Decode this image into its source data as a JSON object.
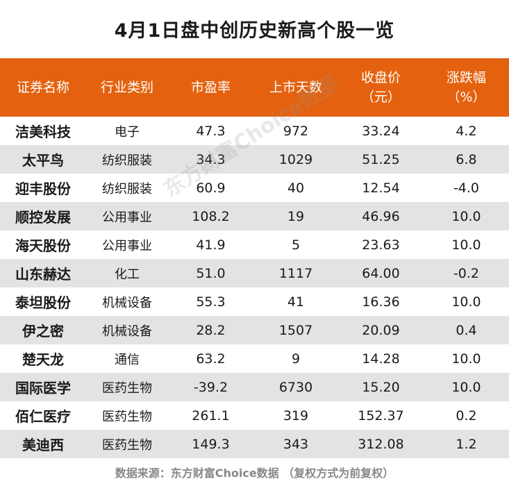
{
  "title": "4月1日盘中创历史新高个股一览",
  "headers": [
    {
      "line1": "证券名称",
      "line2": ""
    },
    {
      "line1": "行业类别",
      "line2": ""
    },
    {
      "line1": "市盈率",
      "line2": ""
    },
    {
      "line1": "上市天数",
      "line2": ""
    },
    {
      "line1": "收盘价",
      "line2": "（元）"
    },
    {
      "line1": "涨跌幅",
      "line2": "（%）"
    }
  ],
  "chart_data": {
    "type": "table",
    "columns": [
      "证券名称",
      "行业类别",
      "市盈率",
      "上市天数",
      "收盘价（元）",
      "涨跌幅（%）"
    ],
    "rows": [
      [
        "洁美科技",
        "电子",
        "47.3",
        "972",
        "33.24",
        "4.2"
      ],
      [
        "太平鸟",
        "纺织服装",
        "34.3",
        "1029",
        "51.25",
        "6.8"
      ],
      [
        "迎丰股份",
        "纺织服装",
        "60.9",
        "40",
        "12.54",
        "-4.0"
      ],
      [
        "顺控发展",
        "公用事业",
        "108.2",
        "19",
        "46.96",
        "10.0"
      ],
      [
        "海天股份",
        "公用事业",
        "41.9",
        "5",
        "23.63",
        "10.0"
      ],
      [
        "山东赫达",
        "化工",
        "51.0",
        "1117",
        "64.00",
        "-0.2"
      ],
      [
        "泰坦股份",
        "机械设备",
        "55.3",
        "41",
        "16.36",
        "10.0"
      ],
      [
        "伊之密",
        "机械设备",
        "28.2",
        "1507",
        "20.09",
        "0.4"
      ],
      [
        "楚天龙",
        "通信",
        "63.2",
        "9",
        "14.28",
        "10.0"
      ],
      [
        "国际医学",
        "医药生物",
        "-39.2",
        "6730",
        "15.20",
        "10.0"
      ],
      [
        "佰仁医疗",
        "医药生物",
        "261.1",
        "319",
        "152.37",
        "0.2"
      ],
      [
        "美迪西",
        "医药生物",
        "149.3",
        "343",
        "312.08",
        "1.2"
      ]
    ]
  },
  "watermark": "东方财富Choice数据",
  "footer": "数据来源：东方财富Choice数据 （复权方式为前复权）",
  "colors": {
    "header_bg": "#e4620f",
    "alt_row_bg": "#e3e3e3"
  }
}
